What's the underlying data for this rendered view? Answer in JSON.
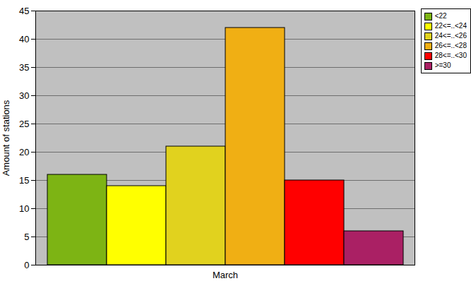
{
  "chart_data": {
    "type": "bar",
    "categories": [
      "March"
    ],
    "series": [
      {
        "name": "<22",
        "color": "#7db414",
        "values": [
          16
        ]
      },
      {
        "name": "22<=..<24",
        "color": "#ffff00",
        "values": [
          14
        ]
      },
      {
        "name": "24<=..<26",
        "color": "#e1d21e",
        "values": [
          21
        ]
      },
      {
        "name": "26<=..<28",
        "color": "#f0af14",
        "values": [
          42
        ]
      },
      {
        "name": "28<=..<30",
        "color": "#ff0000",
        "values": [
          15
        ]
      },
      {
        "name": ">=30",
        "color": "#aa2064",
        "values": [
          6
        ]
      }
    ],
    "ylabel": "Amount of stations",
    "ylim": [
      0,
      45
    ],
    "yticks": [
      0,
      5,
      10,
      15,
      20,
      25,
      30,
      35,
      40,
      45
    ],
    "grid": true,
    "legend": "top-right"
  }
}
